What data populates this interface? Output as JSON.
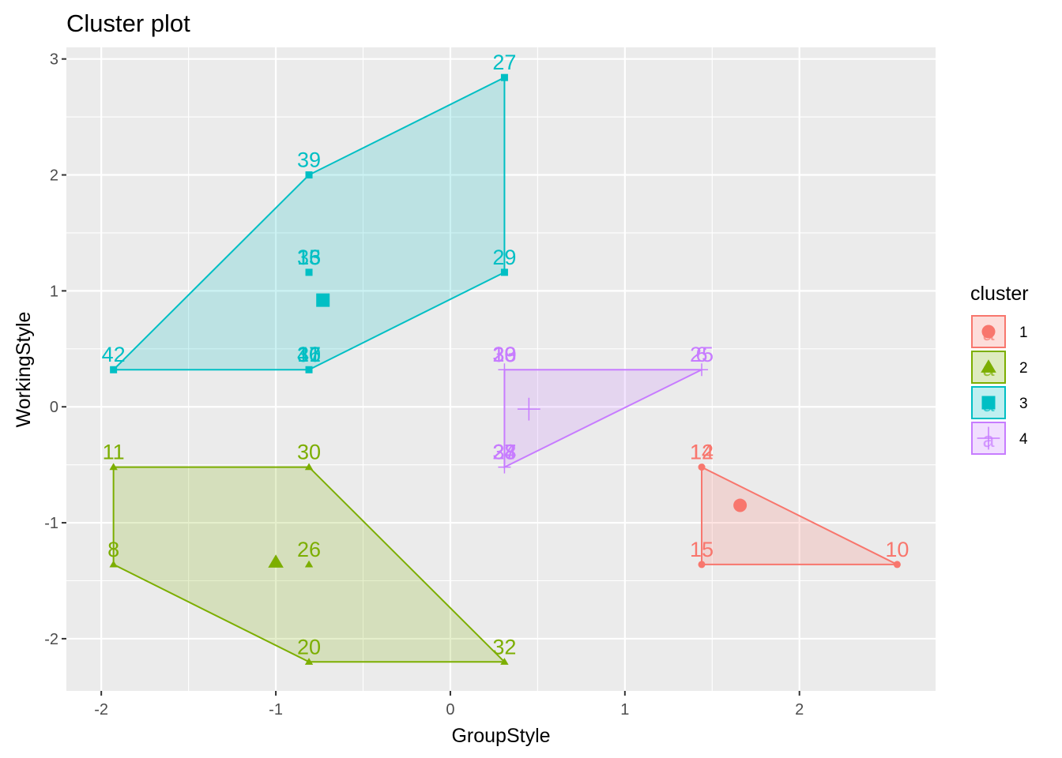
{
  "chart_data": {
    "type": "scatter",
    "title": "Cluster plot",
    "xlabel": "GroupStyle",
    "ylabel": "WorkingStyle",
    "xlim": [
      -2.2,
      2.78
    ],
    "ylim": [
      -2.45,
      3.1
    ],
    "xticks": [
      {
        "value": -2,
        "label": "-2"
      },
      {
        "value": -1,
        "label": "-1"
      },
      {
        "value": 0,
        "label": "0"
      },
      {
        "value": 1,
        "label": "1"
      },
      {
        "value": 2,
        "label": "2"
      }
    ],
    "yticks": [
      {
        "value": -2,
        "label": "-2"
      },
      {
        "value": -1,
        "label": "-1"
      },
      {
        "value": 0,
        "label": "0"
      },
      {
        "value": 1,
        "label": "1"
      },
      {
        "value": 2,
        "label": "2"
      },
      {
        "value": 3,
        "label": "3"
      }
    ],
    "grid": true,
    "legend": {
      "title": "cluster",
      "placement": "right"
    },
    "clusters": [
      {
        "name": "1",
        "color": "#F8766D",
        "shape": "circle",
        "hull": [
          [
            1.44,
            -0.52
          ],
          [
            2.56,
            -1.36
          ],
          [
            1.44,
            -1.36
          ]
        ],
        "centroid": [
          1.66,
          -0.85
        ],
        "points": [
          {
            "x": 1.44,
            "y": -0.52,
            "labels": [
              "12",
              "14"
            ]
          },
          {
            "x": 1.44,
            "y": -1.36,
            "labels": [
              "15"
            ]
          },
          {
            "x": 2.56,
            "y": -1.36,
            "labels": [
              "10"
            ]
          }
        ]
      },
      {
        "name": "2",
        "color": "#7CAE00",
        "shape": "triangle",
        "hull": [
          [
            -1.93,
            -0.52
          ],
          [
            -0.81,
            -0.52
          ],
          [
            0.31,
            -2.2
          ],
          [
            -0.81,
            -2.2
          ],
          [
            -1.93,
            -1.36
          ]
        ],
        "centroid": [
          -1.0,
          -1.34
        ],
        "points": [
          {
            "x": -1.93,
            "y": -0.52,
            "labels": [
              "11"
            ]
          },
          {
            "x": -0.81,
            "y": -0.52,
            "labels": [
              "30"
            ]
          },
          {
            "x": -1.93,
            "y": -1.36,
            "labels": [
              "8"
            ]
          },
          {
            "x": -0.81,
            "y": -1.36,
            "labels": [
              "26"
            ]
          },
          {
            "x": -0.81,
            "y": -2.2,
            "labels": [
              "20"
            ]
          },
          {
            "x": 0.31,
            "y": -2.2,
            "labels": [
              "32"
            ]
          }
        ]
      },
      {
        "name": "3",
        "color": "#00BFC4",
        "shape": "square",
        "hull": [
          [
            0.31,
            2.84
          ],
          [
            0.31,
            1.16
          ],
          [
            -0.81,
            0.32
          ],
          [
            -1.93,
            0.32
          ],
          [
            -0.81,
            2.0
          ]
        ],
        "centroid": [
          -0.73,
          0.92
        ],
        "points": [
          {
            "x": 0.31,
            "y": 2.84,
            "labels": [
              "27"
            ]
          },
          {
            "x": -0.81,
            "y": 2.0,
            "labels": [
              "39"
            ]
          },
          {
            "x": -0.81,
            "y": 1.16,
            "labels": [
              "13",
              "16",
              "35"
            ]
          },
          {
            "x": 0.31,
            "y": 1.16,
            "labels": [
              "29"
            ]
          },
          {
            "x": -1.93,
            "y": 0.32,
            "labels": [
              "42"
            ]
          },
          {
            "x": -0.81,
            "y": 0.32,
            "labels": [
              "17",
              "31",
              "36",
              "40"
            ]
          }
        ]
      },
      {
        "name": "4",
        "color": "#C77CFF",
        "shape": "cross",
        "hull": [
          [
            0.31,
            0.32
          ],
          [
            1.44,
            0.32
          ],
          [
            0.31,
            -0.52
          ]
        ],
        "centroid": [
          0.45,
          -0.02
        ],
        "points": [
          {
            "x": 0.31,
            "y": 0.32,
            "labels": [
              "19",
              "20",
              "30",
              "33"
            ]
          },
          {
            "x": 1.44,
            "y": 0.32,
            "labels": [
              "25",
              "6"
            ]
          },
          {
            "x": 0.31,
            "y": -0.52,
            "labels": [
              "23",
              "24",
              "28",
              "37"
            ]
          }
        ]
      }
    ]
  }
}
